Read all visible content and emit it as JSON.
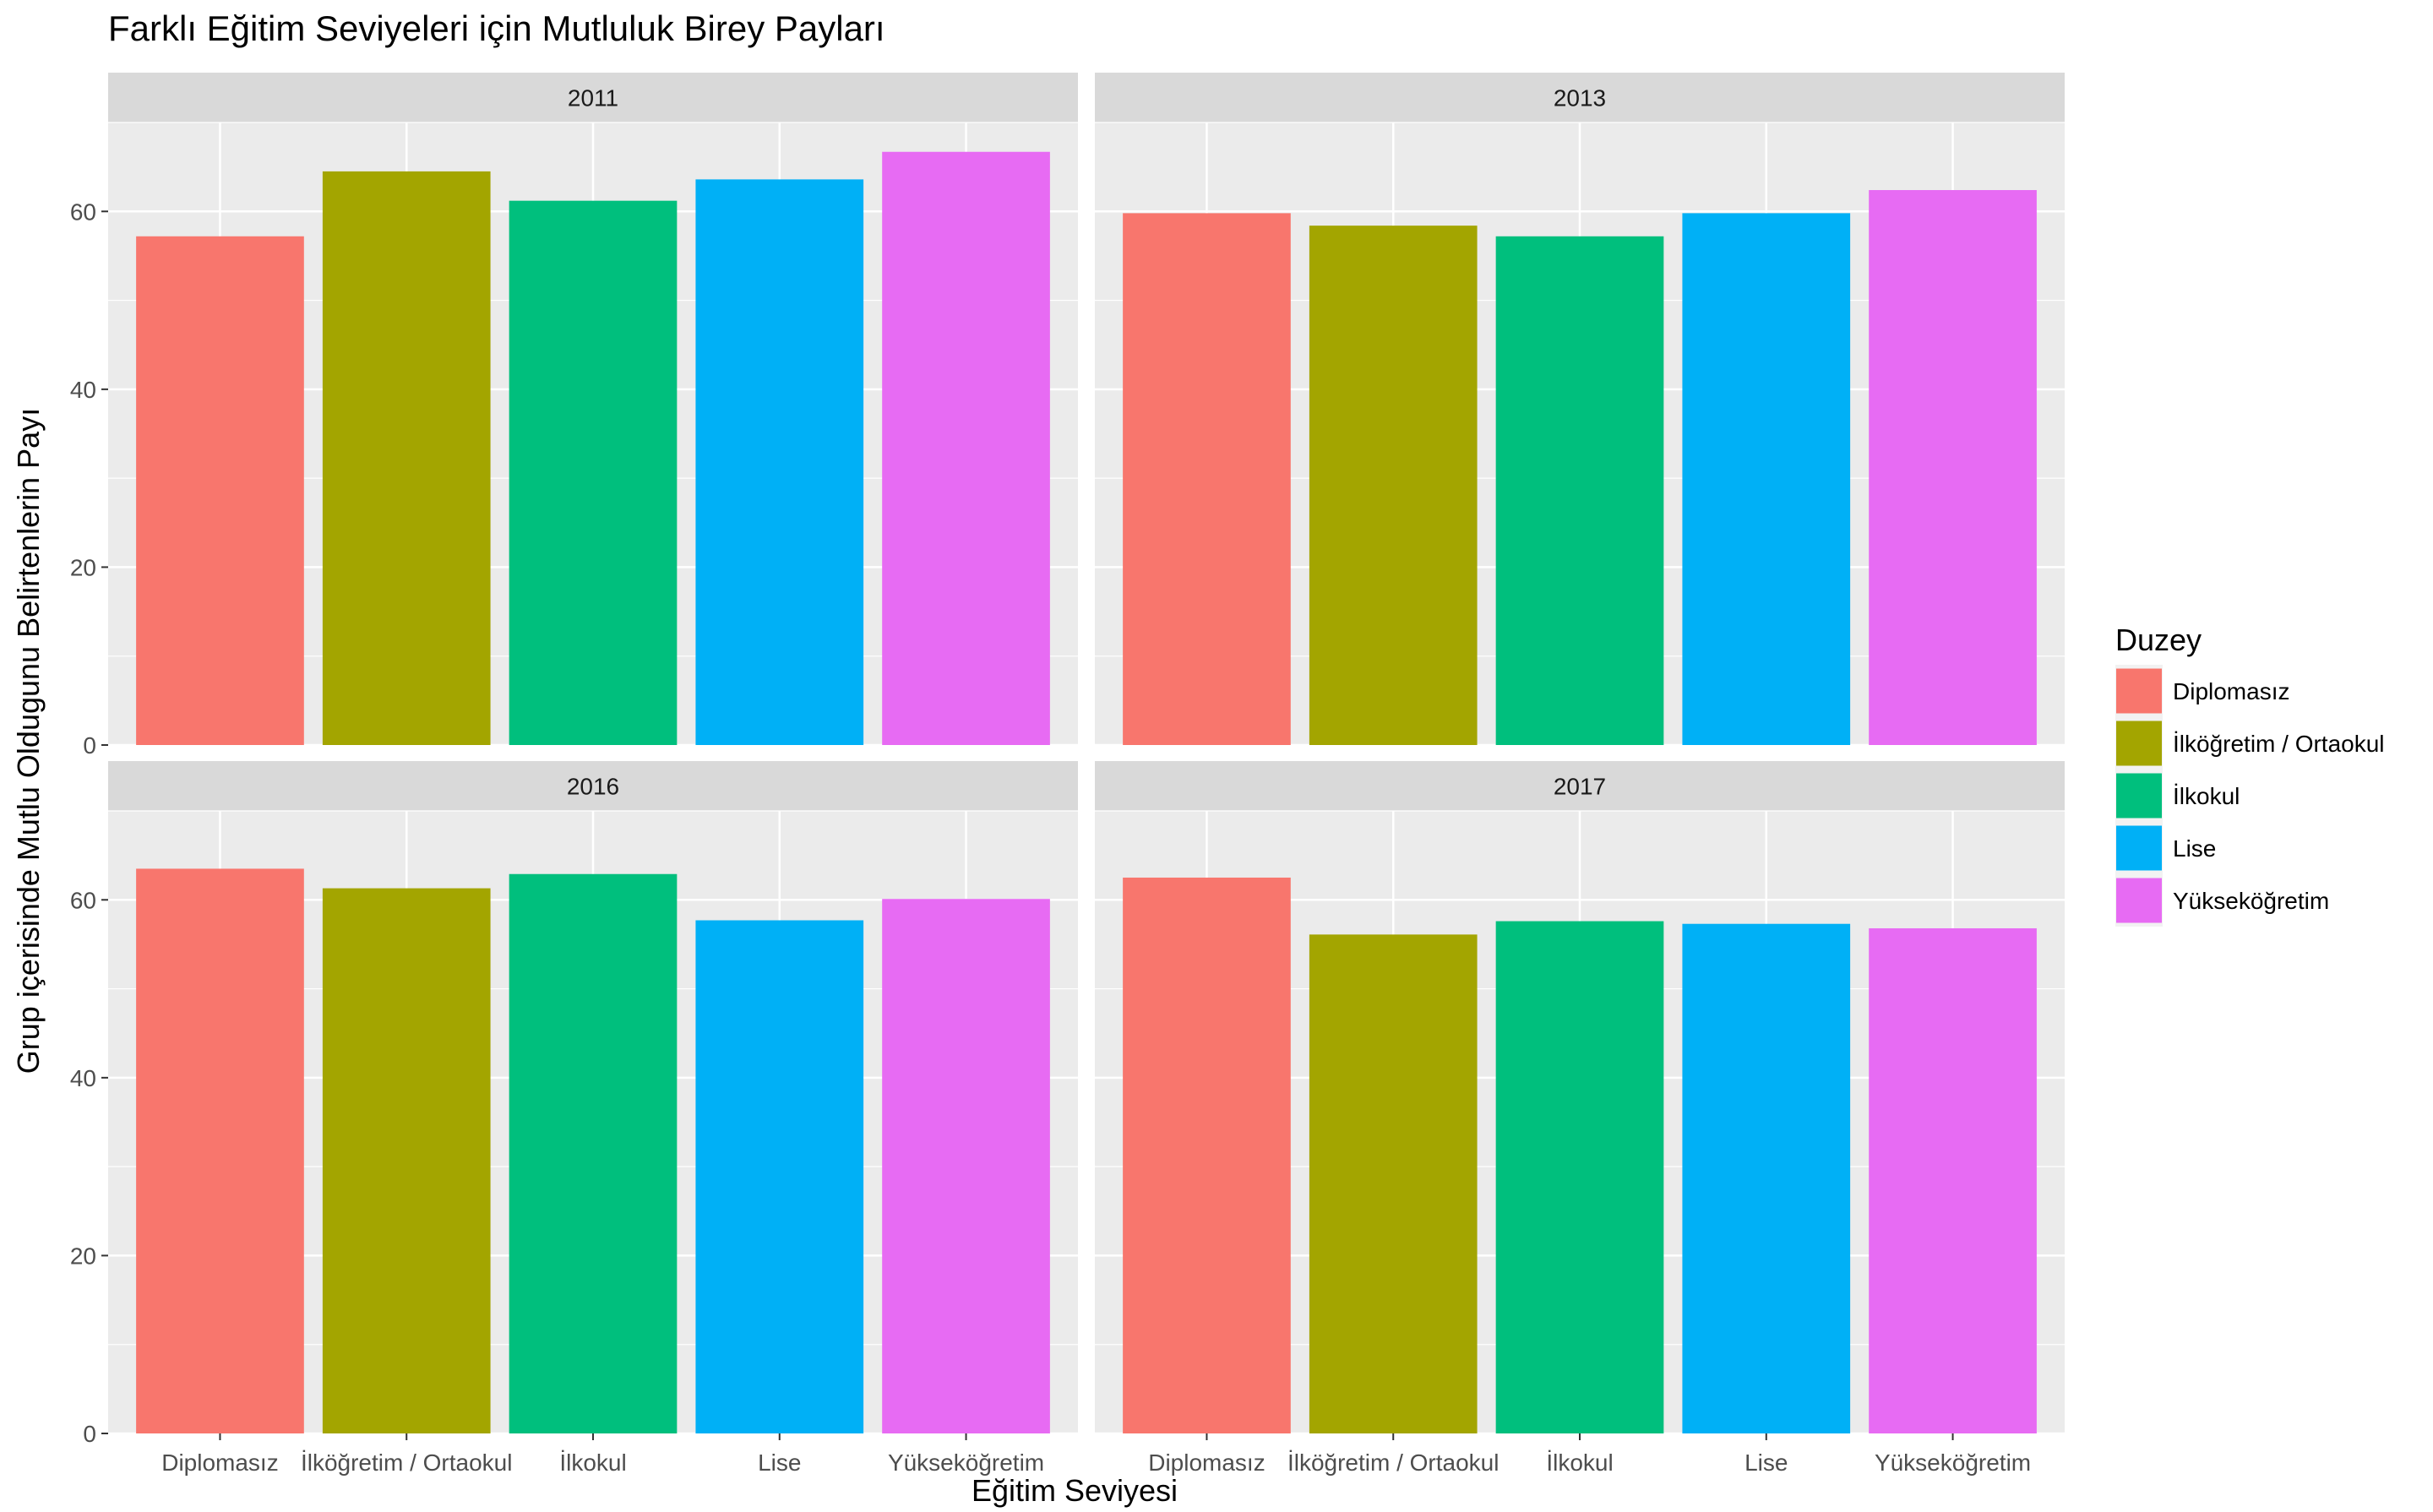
{
  "chart_data": {
    "type": "bar",
    "title": "Farklı Eğitim Seviyeleri için Mutluluk Birey Payları",
    "xlabel": "Eğitim Seviyesi",
    "ylabel": "Grup içerisinde Mutlu Oldugunu Belirtenlerin Payı",
    "ylim": [
      0,
      70
    ],
    "yticks": [
      0,
      20,
      40,
      60
    ],
    "grid": true,
    "legend": {
      "title": "Duzey",
      "position": "right",
      "entries": [
        {
          "label": "Diplomasız",
          "color": "#F8766D"
        },
        {
          "label": "İlköğretim / Ortaokul",
          "color": "#A3A500"
        },
        {
          "label": "İlkokul",
          "color": "#00BF7D"
        },
        {
          "label": "Lise",
          "color": "#00B0F6"
        },
        {
          "label": "Yükseköğretim",
          "color": "#E76BF3"
        }
      ]
    },
    "categories": [
      "Diplomasız",
      "İlköğretim / Ortaokul",
      "İlkokul",
      "Lise",
      "Yükseköğretim"
    ],
    "facets": [
      {
        "label": "2011",
        "values": [
          57.2,
          64.5,
          61.2,
          63.6,
          66.7
        ]
      },
      {
        "label": "2013",
        "values": [
          59.8,
          58.4,
          57.2,
          59.8,
          62.4
        ]
      },
      {
        "label": "2016",
        "values": [
          63.5,
          61.3,
          62.9,
          57.7,
          60.1
        ]
      },
      {
        "label": "2017",
        "values": [
          62.5,
          56.1,
          57.6,
          57.3,
          56.8
        ]
      }
    ]
  }
}
